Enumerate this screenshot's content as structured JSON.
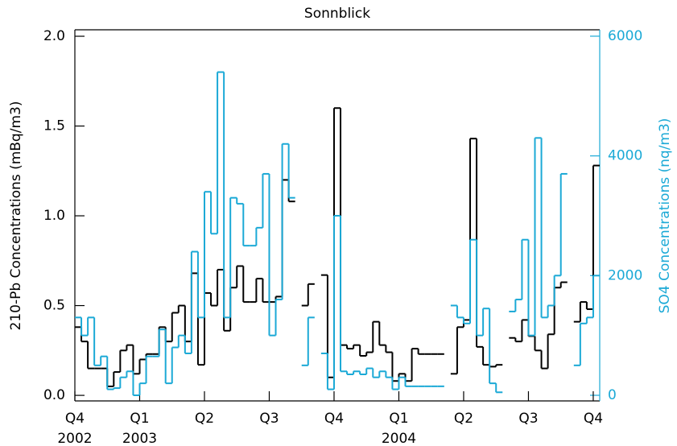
{
  "chart_data": {
    "type": "line",
    "step": "post",
    "title": "Sonnblick",
    "y_label": "210-Pb Concentrations (mBq/m3)",
    "y2_label": "SO4 Concentrations (nq/m3)",
    "x": [
      0,
      0.1,
      0.2,
      0.3,
      0.4,
      0.5,
      0.6,
      0.7,
      0.8,
      0.9,
      1.0,
      1.1,
      1.2,
      1.3,
      1.4,
      1.5,
      1.6,
      1.7,
      1.8,
      1.9,
      2.0,
      2.1,
      2.2,
      2.3,
      2.4,
      2.5,
      2.6,
      2.7,
      2.8,
      2.9,
      3.0,
      3.1,
      3.2,
      3.3,
      3.4,
      3.5,
      3.6,
      3.7,
      3.8,
      3.9,
      4.0,
      4.1,
      4.2,
      4.3,
      4.4,
      4.5,
      4.6,
      4.7,
      4.8,
      4.9,
      5.0,
      5.1,
      5.2,
      5.3,
      5.4,
      5.5,
      5.6,
      5.7,
      5.8,
      5.9,
      6.0,
      6.1,
      6.2,
      6.3,
      6.4,
      6.5,
      6.6,
      6.7,
      6.8,
      6.9,
      7.0,
      7.1,
      7.2,
      7.3,
      7.4,
      7.5,
      7.6,
      7.7,
      7.8,
      7.9,
      8.0
    ],
    "xlim": [
      0,
      8.1
    ],
    "xticks": [
      {
        "value": 0,
        "label": "Q4",
        "year": "2002"
      },
      {
        "value": 1,
        "label": "Q1",
        "year": "2003"
      },
      {
        "value": 2,
        "label": "Q2"
      },
      {
        "value": 3,
        "label": "Q3"
      },
      {
        "value": 4,
        "label": "Q4"
      },
      {
        "value": 5,
        "label": "Q1",
        "year": "2004"
      },
      {
        "value": 6,
        "label": "Q2"
      },
      {
        "value": 7,
        "label": "Q3"
      },
      {
        "value": 8,
        "label": "Q4"
      }
    ],
    "ylim": [
      -0.031,
      2.036
    ],
    "yticks": [
      {
        "value": 0,
        "label": "0.0"
      },
      {
        "value": 0.5,
        "label": "0.5"
      },
      {
        "value": 1,
        "label": "1.0"
      },
      {
        "value": 1.5,
        "label": "1.5"
      },
      {
        "value": 2,
        "label": "2.0"
      }
    ],
    "y2lim": [
      -94,
      6107
    ],
    "y2ticks": [
      0,
      2000,
      4000,
      6000
    ],
    "y2_color": "#1ba9d6",
    "series": [
      {
        "name": "210-Pb",
        "color": "#000000",
        "values": [
          0.38,
          0.3,
          0.15,
          0.15,
          0.15,
          0.05,
          0.13,
          0.25,
          0.28,
          0.12,
          0.2,
          0.23,
          0.23,
          0.38,
          0.3,
          0.46,
          0.5,
          0.3,
          0.68,
          0.17,
          0.57,
          0.5,
          0.7,
          0.36,
          0.6,
          0.72,
          0.52,
          0.52,
          0.65,
          0.52,
          0.52,
          0.55,
          1.2,
          1.08,
          null,
          0.5,
          0.62,
          null,
          0.67,
          0.1,
          1.6,
          0.28,
          0.26,
          0.28,
          0.22,
          0.24,
          0.41,
          0.28,
          0.24,
          0.08,
          0.12,
          0.08,
          0.26,
          0.23,
          0.23,
          0.23,
          0.23,
          null,
          0.12,
          0.38,
          0.42,
          1.43,
          0.27,
          0.17,
          0.16,
          0.17,
          null,
          0.32,
          0.3,
          0.42,
          0.33,
          0.25,
          0.15,
          0.34,
          0.6,
          0.63,
          null,
          0.41,
          0.52,
          0.48,
          1.28
        ]
      },
      {
        "name": "SO4",
        "color": "#1ba9d6",
        "axis": "y2",
        "values": [
          1300,
          1000,
          1300,
          500,
          650,
          100,
          120,
          300,
          400,
          0,
          200,
          650,
          650,
          1100,
          200,
          800,
          1000,
          700,
          2400,
          1300,
          3400,
          2700,
          5400,
          1300,
          3300,
          3200,
          2500,
          2500,
          2800,
          3700,
          1000,
          1600,
          4200,
          3300,
          null,
          500,
          1300,
          null,
          700,
          100,
          3000,
          400,
          350,
          400,
          350,
          450,
          300,
          400,
          300,
          100,
          300,
          150,
          150,
          150,
          150,
          150,
          150,
          null,
          1500,
          1300,
          1200,
          2600,
          1000,
          1450,
          200,
          50,
          null,
          1400,
          1600,
          2600,
          1000,
          4300,
          1300,
          1500,
          2000,
          3700,
          null,
          500,
          1200,
          1300,
          2000
        ]
      }
    ]
  }
}
